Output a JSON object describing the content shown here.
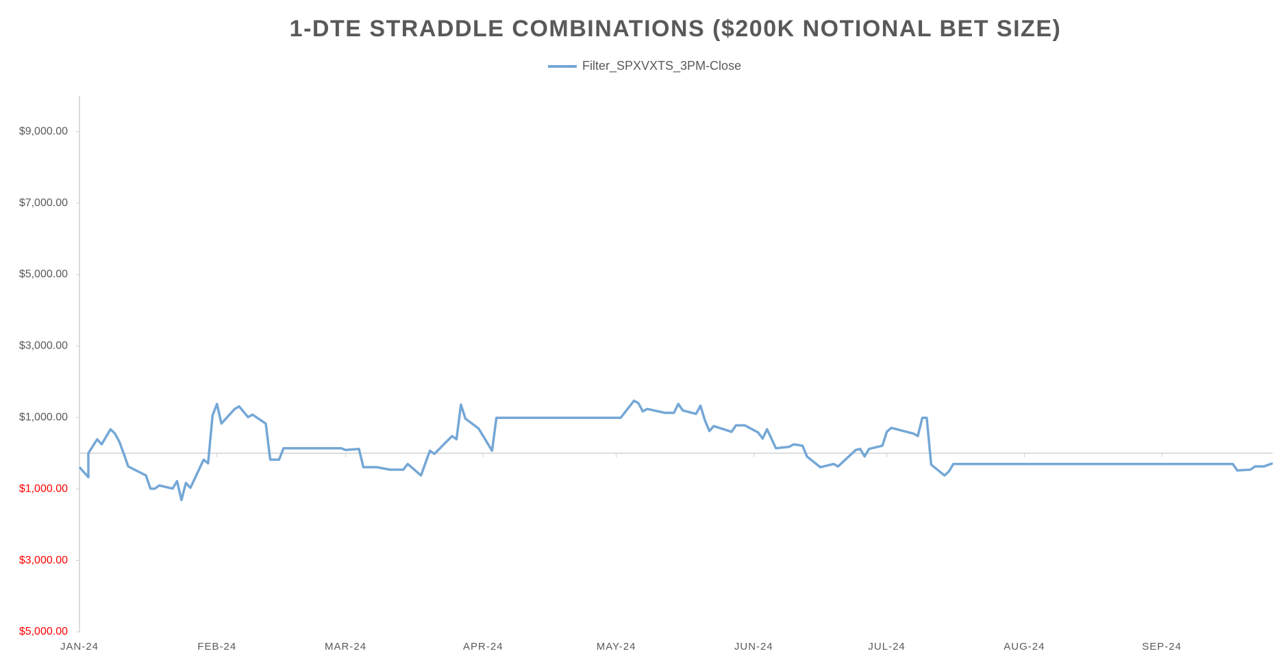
{
  "chart_data": {
    "type": "line",
    "title": "1-DTE STRADDLE COMBINATIONS ($200K NOTIONAL BET SIZE)",
    "x": [
      0,
      2,
      2,
      4,
      5,
      7,
      8,
      9,
      10,
      11,
      15,
      16,
      17,
      18,
      21,
      22,
      23,
      24,
      25,
      28,
      29,
      30,
      31,
      32,
      35,
      36,
      38,
      39,
      42,
      43,
      45,
      46,
      59,
      60,
      63,
      64,
      67,
      70,
      73,
      74,
      77,
      79,
      80,
      84,
      85,
      86,
      87,
      90,
      93,
      94,
      122,
      125,
      126,
      127,
      128,
      132,
      134,
      135,
      136,
      139,
      140,
      141,
      142,
      143,
      147,
      148,
      150,
      153,
      154,
      155,
      156,
      157,
      160,
      161,
      163,
      164,
      167,
      170,
      171,
      175,
      176,
      177,
      178,
      181,
      182,
      183,
      188,
      189,
      190,
      191,
      192,
      195,
      196,
      197,
      260,
      261,
      264,
      265,
      267,
      269
    ],
    "series": [
      {
        "name": "Filter_SPXVXTS_3PM-Close",
        "color": "#74a7d6",
        "values": [
          -390,
          -670,
          0,
          390,
          250,
          670,
          550,
          320,
          -20,
          -370,
          -620,
          -990,
          -990,
          -900,
          -990,
          -780,
          -1310,
          -830,
          -970,
          -180,
          -280,
          1060,
          1380,
          830,
          1240,
          1310,
          1010,
          1080,
          830,
          -180,
          -180,
          140,
          140,
          90,
          120,
          -390,
          -390,
          -460,
          -460,
          -300,
          -620,
          70,
          -20,
          480,
          390,
          1360,
          970,
          690,
          70,
          990,
          990,
          1470,
          1400,
          1170,
          1240,
          1130,
          1130,
          1380,
          1200,
          1100,
          1330,
          920,
          620,
          760,
          600,
          780,
          780,
          580,
          410,
          670,
          410,
          140,
          180,
          250,
          210,
          -90,
          -390,
          -300,
          -370,
          90,
          120,
          -90,
          120,
          210,
          600,
          710,
          550,
          480,
          990,
          990,
          -320,
          -620,
          -510,
          -300,
          -300,
          -480,
          -460,
          -370,
          -370,
          -280
        ]
      }
    ],
    "xlim": [
      0,
      269
    ],
    "xticks": [
      {
        "value": 0,
        "label": "JAN-24"
      },
      {
        "value": 31,
        "label": "FEB-24"
      },
      {
        "value": 60,
        "label": "MAR-24"
      },
      {
        "value": 91,
        "label": "APR-24"
      },
      {
        "value": 121,
        "label": "MAY-24"
      },
      {
        "value": 152,
        "label": "JUN-24"
      },
      {
        "value": 182,
        "label": "JUL-24"
      },
      {
        "value": 213,
        "label": "AUG-24"
      },
      {
        "value": 244,
        "label": "SEP-24"
      }
    ],
    "ylim": [
      -5000,
      10000
    ],
    "yticks": [
      {
        "value": -5000,
        "label": "$5,000.00"
      },
      {
        "value": -3000,
        "label": "$3,000.00"
      },
      {
        "value": -1000,
        "label": "$1,000.00"
      },
      {
        "value": 1000,
        "label": "$1,000.00"
      },
      {
        "value": 3000,
        "label": "$3,000.00"
      },
      {
        "value": 5000,
        "label": "$5,000.00"
      },
      {
        "value": 7000,
        "label": "$7,000.00"
      },
      {
        "value": 9000,
        "label": "$9,000.00"
      }
    ],
    "negative_tick_color": "#ff0000",
    "legend": "top"
  }
}
